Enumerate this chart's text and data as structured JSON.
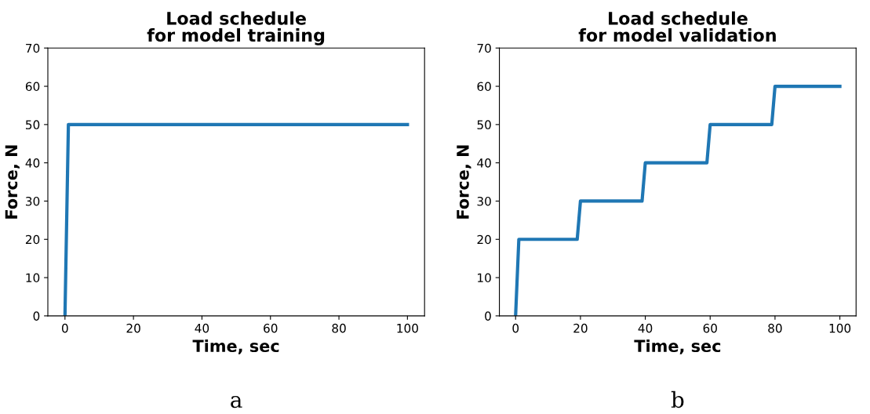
{
  "chart_data": [
    {
      "type": "line",
      "title": "Load schedule\nfor model training",
      "xlabel": "Time, sec",
      "ylabel": "Force, N",
      "annotations": [
        "a"
      ],
      "series": [
        {
          "color": "#1f77b4",
          "x": [
            0,
            1,
            100
          ],
          "values": [
            0,
            50,
            50
          ]
        }
      ],
      "xlim": [
        -5,
        105
      ],
      "xticks": [
        0,
        20,
        40,
        60,
        80,
        100
      ],
      "ylim": [
        0,
        70
      ],
      "yticks": [
        0,
        10,
        20,
        30,
        40,
        50,
        60,
        70
      ],
      "grid": false,
      "marker": "none",
      "line_style": "solid"
    },
    {
      "type": "line",
      "title": "Load schedule\nfor model validation",
      "xlabel": "Time, sec",
      "ylabel": "Force, N",
      "annotations": [
        "b"
      ],
      "series": [
        {
          "color": "#1f77b4",
          "x": [
            0,
            1,
            19,
            20,
            39,
            40,
            59,
            60,
            79,
            80,
            100
          ],
          "values": [
            0,
            20,
            20,
            30,
            30,
            40,
            40,
            50,
            50,
            60,
            60
          ]
        }
      ],
      "xlim": [
        -5,
        105
      ],
      "xticks": [
        0,
        20,
        40,
        60,
        80,
        100
      ],
      "ylim": [
        0,
        70
      ],
      "yticks": [
        0,
        10,
        20,
        30,
        40,
        50,
        60,
        70
      ],
      "grid": false,
      "marker": "none",
      "line_style": "solid"
    }
  ]
}
